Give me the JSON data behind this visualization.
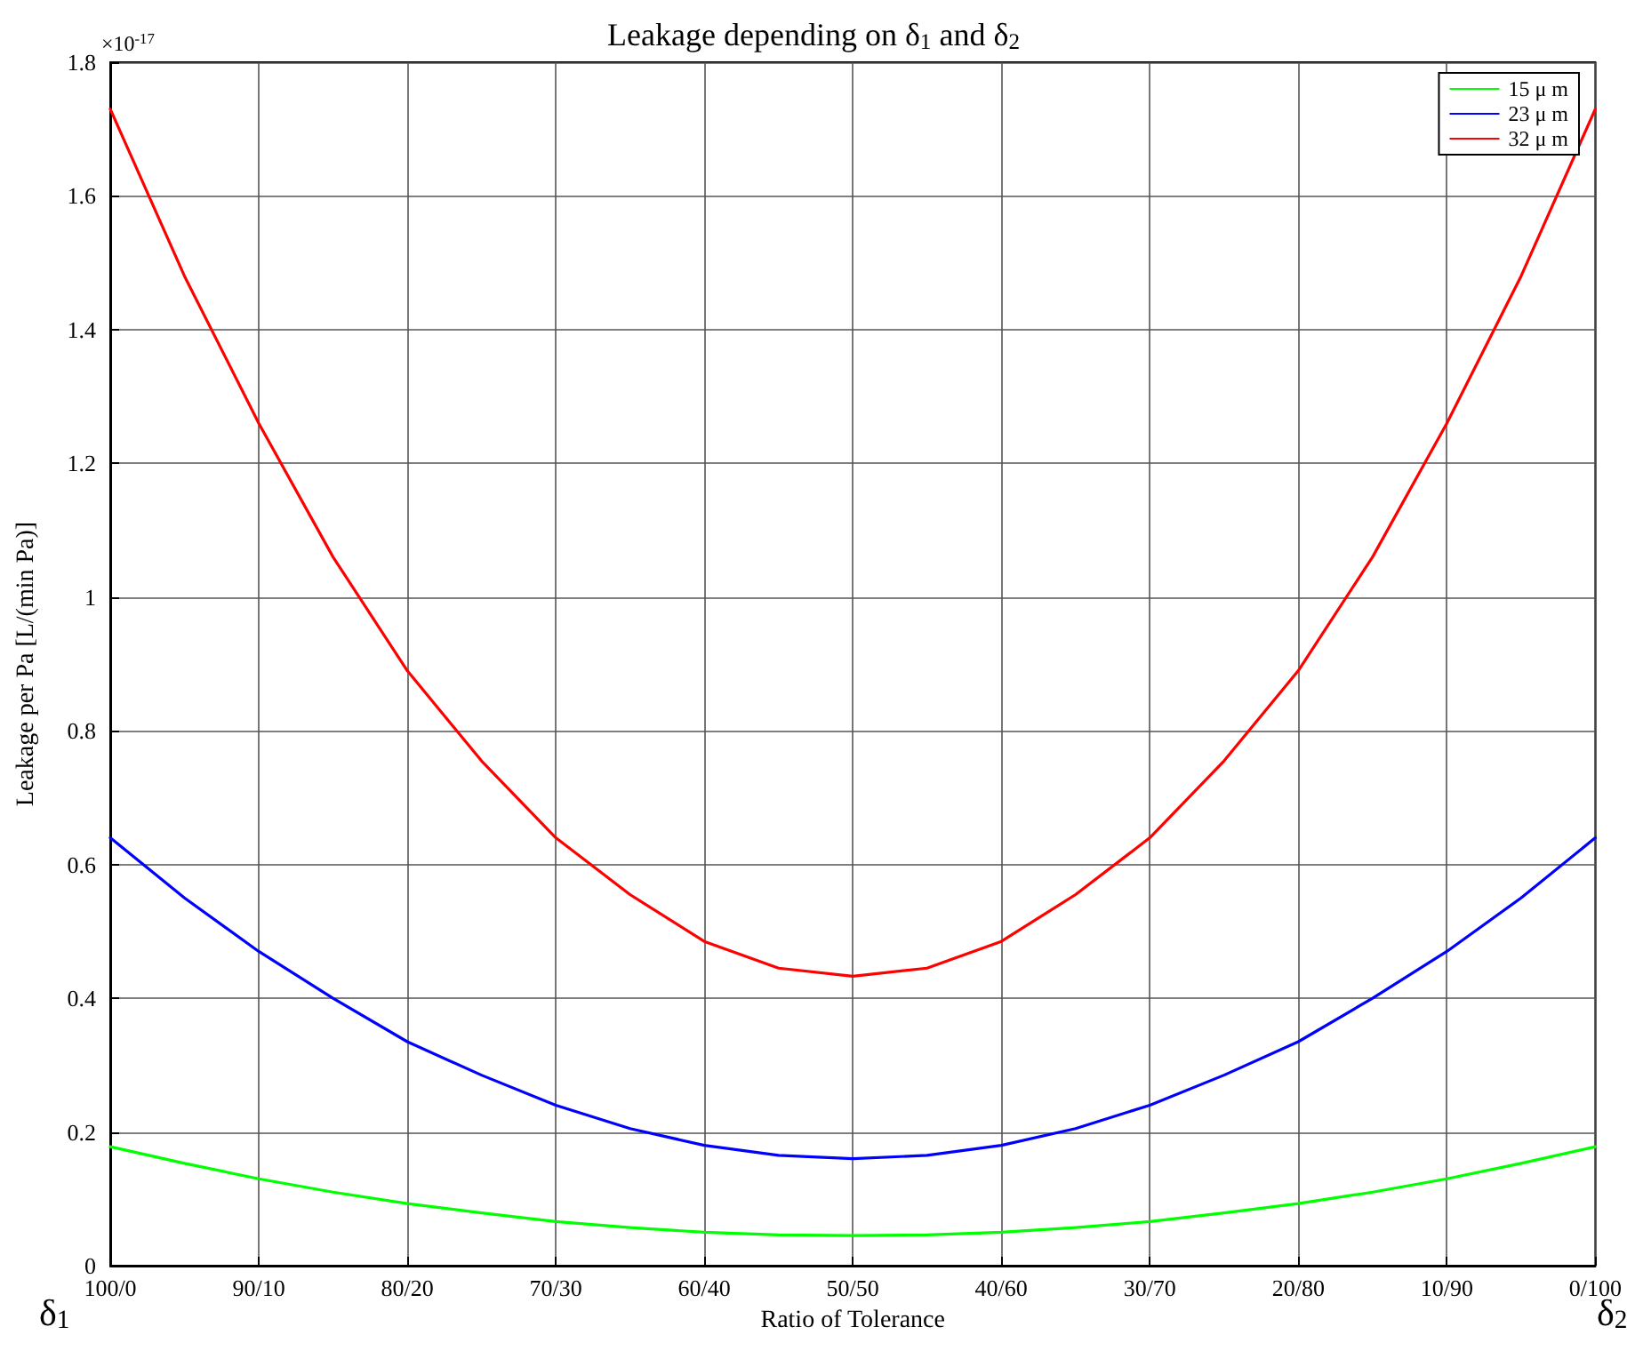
{
  "chart_data": {
    "type": "line",
    "title": "Leakage depending on δ$_{1}$ and δ$_{2}$",
    "xlabel": "Ratio of Tolerance",
    "ylabel": "Leakage per Pa [L/(min Pa)]",
    "annotations": [
      "δ$_{1}$",
      "δ$_{2}$",
      "×10$^{-17}$"
    ],
    "categories": [
      "100/0",
      null,
      "90/10",
      null,
      "80/20",
      null,
      "70/30",
      null,
      "60/40",
      null,
      "50/50",
      null,
      "40/60",
      null,
      "30/70",
      null,
      "20/80",
      null,
      "10/90",
      null,
      "0/100"
    ],
    "series": [
      {
        "name": "15 μ m",
        "color": "#00ff00",
        "values": [
          0.178,
          0.153,
          0.13,
          0.11,
          0.093,
          0.079,
          0.066,
          0.057,
          0.05,
          0.046,
          0.045,
          0.046,
          0.05,
          0.057,
          0.066,
          0.079,
          0.093,
          0.11,
          0.13,
          0.153,
          0.178
        ]
      },
      {
        "name": "23 μ m",
        "color": "#0000ff",
        "values": [
          0.64,
          0.55,
          0.47,
          0.4,
          0.335,
          0.285,
          0.24,
          0.205,
          0.18,
          0.165,
          0.16,
          0.165,
          0.18,
          0.205,
          0.24,
          0.285,
          0.335,
          0.4,
          0.47,
          0.55,
          0.64
        ]
      },
      {
        "name": "32 μ m",
        "color": "#ff0000",
        "values": [
          1.73,
          1.48,
          1.26,
          1.06,
          0.89,
          0.755,
          0.64,
          0.555,
          0.485,
          0.445,
          0.433,
          0.445,
          0.485,
          0.555,
          0.64,
          0.755,
          0.89,
          1.06,
          1.26,
          1.48,
          1.73
        ]
      }
    ],
    "ylim": [
      0,
      1.8
    ],
    "yticks": [
      0,
      0.2,
      0.4,
      0.6,
      0.8,
      1,
      1.2,
      1.4,
      1.6,
      1.8
    ],
    "grid": true,
    "legend": "top right",
    "marker": "none",
    "line_style": "solid"
  }
}
